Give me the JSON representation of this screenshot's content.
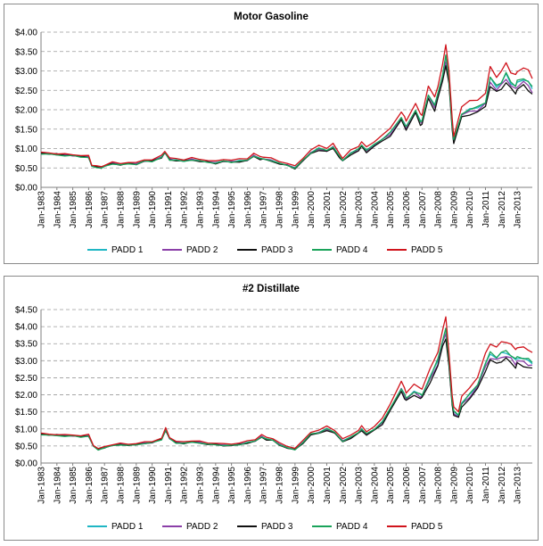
{
  "chart_data": [
    {
      "type": "line",
      "title": "Motor Gasoline",
      "ylim": [
        0,
        4
      ],
      "y_ticks": [
        0,
        0.5,
        1.0,
        1.5,
        2.0,
        2.5,
        3.0,
        3.5,
        4.0
      ],
      "y_tick_labels": [
        "$0.00",
        "$0.50",
        "$1.00",
        "$1.50",
        "$2.00",
        "$2.50",
        "$3.00",
        "$3.50",
        "$4.00"
      ],
      "x_tick_labels": [
        "Jan-1983",
        "Jan-1984",
        "Jan-1985",
        "Jan-1986",
        "Jan-1987",
        "Jan-1988",
        "Jan-1989",
        "Jan-1990",
        "Jan-1991",
        "Jan-1992",
        "Jan-1993",
        "Jan-1994",
        "Jan-1995",
        "Jan-1996",
        "Jan-1997",
        "Jan-1998",
        "Jan-1999",
        "Jan-2000",
        "Jan-2001",
        "Jan-2002",
        "Jan-2003",
        "Jan-2004",
        "Jan-2005",
        "Jan-2006",
        "Jan-2007",
        "Jan-2008",
        "Jan-2009",
        "Jan-2010",
        "Jan-2011",
        "Jan-2012",
        "Jan-2013"
      ],
      "x_range": [
        1983.0,
        2013.95
      ],
      "grid": true,
      "legend": "bottom",
      "series": [
        {
          "name": "PADD 1",
          "color": "#1fb6c4"
        },
        {
          "name": "PADD 2",
          "color": "#8b3fa8"
        },
        {
          "name": "PADD 3",
          "color": "#111111"
        },
        {
          "name": "PADD 4",
          "color": "#1aa35a"
        },
        {
          "name": "PADD 5",
          "color": "#d0141c"
        }
      ],
      "base_x": [
        1983.0,
        1983.5,
        1984.0,
        1984.5,
        1985.0,
        1985.5,
        1986.0,
        1986.2,
        1986.5,
        1986.8,
        1987.0,
        1987.5,
        1988.0,
        1988.5,
        1989.0,
        1989.5,
        1990.0,
        1990.6,
        1990.8,
        1991.1,
        1991.5,
        1992.0,
        1992.5,
        1993.0,
        1993.5,
        1994.0,
        1994.5,
        1995.0,
        1995.5,
        1996.0,
        1996.4,
        1996.8,
        1997.0,
        1997.5,
        1998.0,
        1998.5,
        1999.0,
        1999.5,
        2000.0,
        2000.5,
        2001.0,
        2001.4,
        2001.8,
        2002.0,
        2002.5,
        2003.0,
        2003.2,
        2003.5,
        2004.0,
        2004.5,
        2005.0,
        2005.7,
        2005.9,
        2006.0,
        2006.6,
        2006.9,
        2007.0,
        2007.4,
        2007.8,
        2008.0,
        2008.3,
        2008.5,
        2008.7,
        2008.9,
        2009.0,
        2009.5,
        2010.0,
        2010.5,
        2011.0,
        2011.3,
        2011.7,
        2012.0,
        2012.3,
        2012.6,
        2012.9,
        2013.0,
        2013.4,
        2013.7,
        2013.95
      ],
      "base_y": [
        0.88,
        0.86,
        0.85,
        0.83,
        0.82,
        0.8,
        0.78,
        0.55,
        0.53,
        0.5,
        0.55,
        0.62,
        0.58,
        0.62,
        0.6,
        0.68,
        0.68,
        0.78,
        0.9,
        0.72,
        0.7,
        0.68,
        0.72,
        0.68,
        0.66,
        0.63,
        0.68,
        0.66,
        0.68,
        0.7,
        0.82,
        0.74,
        0.74,
        0.7,
        0.62,
        0.58,
        0.5,
        0.7,
        0.9,
        1.0,
        0.95,
        1.05,
        0.8,
        0.7,
        0.88,
        0.98,
        1.1,
        0.95,
        1.1,
        1.25,
        1.4,
        1.8,
        1.65,
        1.55,
        2.0,
        1.7,
        1.7,
        2.4,
        2.1,
        2.4,
        2.9,
        3.35,
        2.8,
        1.6,
        1.2,
        1.9,
        2.0,
        2.05,
        2.2,
        2.8,
        2.6,
        2.7,
        2.9,
        2.7,
        2.6,
        2.7,
        2.8,
        2.7,
        2.55
      ]
    },
    {
      "type": "line",
      "title": "#2 Distillate",
      "ylim": [
        0,
        4.5
      ],
      "y_ticks": [
        0,
        0.5,
        1.0,
        1.5,
        2.0,
        2.5,
        3.0,
        3.5,
        4.0,
        4.5
      ],
      "y_tick_labels": [
        "$0.00",
        "$0.50",
        "$1.00",
        "$1.50",
        "$2.00",
        "$2.50",
        "$3.00",
        "$3.50",
        "$4.00",
        "$4.50"
      ],
      "x_tick_labels": [
        "Jan-1983",
        "Jan-1984",
        "Jan-1985",
        "Jan-1986",
        "Jan-1987",
        "Jan-1988",
        "Jan-1989",
        "Jan-1990",
        "Jan-1991",
        "Jan-1992",
        "Jan-1993",
        "Jan-1994",
        "Jan-1995",
        "Jan-1996",
        "Jan-1997",
        "Jan-1998",
        "Jan-1999",
        "Jan-2000",
        "Jan-2001",
        "Jan-2002",
        "Jan-2003",
        "Jan-2004",
        "Jan-2005",
        "Jan-2006",
        "Jan-2007",
        "Jan-2008",
        "Jan-2009",
        "Jan-2010",
        "Jan-2011",
        "Jan-2012",
        "Jan-2013"
      ],
      "x_range": [
        1983.0,
        2013.95
      ],
      "grid": true,
      "legend": "bottom",
      "series": [
        {
          "name": "PADD 1",
          "color": "#1fb6c4"
        },
        {
          "name": "PADD 2",
          "color": "#8b3fa8"
        },
        {
          "name": "PADD 3",
          "color": "#111111"
        },
        {
          "name": "PADD 4",
          "color": "#1aa35a"
        },
        {
          "name": "PADD 5",
          "color": "#d0141c"
        }
      ],
      "base_x": [
        1983.0,
        1983.5,
        1984.0,
        1984.5,
        1985.0,
        1985.5,
        1986.0,
        1986.3,
        1986.6,
        1987.0,
        1987.5,
        1988.0,
        1988.5,
        1989.0,
        1989.5,
        1990.0,
        1990.6,
        1990.85,
        1991.1,
        1991.5,
        1992.0,
        1992.5,
        1993.0,
        1993.5,
        1994.0,
        1994.5,
        1995.0,
        1995.5,
        1996.0,
        1996.5,
        1996.9,
        1997.2,
        1997.6,
        1998.0,
        1998.5,
        1999.0,
        1999.5,
        2000.0,
        2000.5,
        2001.0,
        2001.5,
        2002.0,
        2002.5,
        2003.0,
        2003.2,
        2003.5,
        2004.0,
        2004.5,
        2005.0,
        2005.7,
        2005.9,
        2006.0,
        2006.5,
        2006.9,
        2007.0,
        2007.5,
        2008.0,
        2008.3,
        2008.5,
        2008.7,
        2008.9,
        2009.0,
        2009.3,
        2009.5,
        2010.0,
        2010.5,
        2011.0,
        2011.3,
        2011.7,
        2012.0,
        2012.3,
        2012.6,
        2012.9,
        2013.0,
        2013.4,
        2013.7,
        2013.95
      ],
      "base_y": [
        0.85,
        0.82,
        0.82,
        0.8,
        0.8,
        0.78,
        0.8,
        0.5,
        0.4,
        0.45,
        0.52,
        0.55,
        0.52,
        0.55,
        0.58,
        0.6,
        0.7,
        0.98,
        0.72,
        0.6,
        0.58,
        0.62,
        0.6,
        0.55,
        0.55,
        0.52,
        0.52,
        0.55,
        0.6,
        0.65,
        0.78,
        0.7,
        0.68,
        0.55,
        0.45,
        0.4,
        0.6,
        0.85,
        0.9,
        1.0,
        0.9,
        0.65,
        0.75,
        0.9,
        1.0,
        0.85,
        1.0,
        1.2,
        1.6,
        2.2,
        2.0,
        1.9,
        2.1,
        2.0,
        2.0,
        2.5,
        3.0,
        3.6,
        3.9,
        3.0,
        1.8,
        1.5,
        1.4,
        1.75,
        2.0,
        2.3,
        2.9,
        3.2,
        3.1,
        3.2,
        3.25,
        3.15,
        3.0,
        3.1,
        3.05,
        3.0,
        2.95
      ]
    }
  ]
}
